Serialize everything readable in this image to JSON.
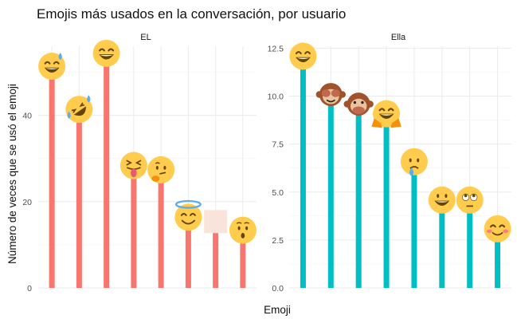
{
  "chart_data": {
    "type": "bar",
    "title": "Emojis más usados en la conversación, por usuario",
    "xlabel": "Emoji",
    "ylabel": "Número de veces que se usó el emoji",
    "grid": true,
    "legend": "none",
    "panels": [
      {
        "name": "EL",
        "color": "#F8766D",
        "ylim": [
          0,
          56
        ],
        "yticks": [
          0,
          20,
          40
        ],
        "ytick_labels": [
          "0",
          "20",
          "40"
        ],
        "emojis": [
          "grinning-face-with-sweat",
          "rolling-on-the-floor-laughing",
          "beaming-face-with-smiling-eyes",
          "squinting-face-with-tongue",
          "thinking-face",
          "smiling-face-with-halo",
          "unrendered-emoji-box",
          "hushed-face"
        ],
        "values": [
          51,
          41,
          54,
          28,
          27,
          16,
          15,
          13
        ]
      },
      {
        "name": "Ella",
        "color": "#00BFC4",
        "ylim": [
          0,
          12.6
        ],
        "yticks": [
          0,
          2.5,
          5,
          7.5,
          10,
          12.5
        ],
        "ytick_labels": [
          "0.0",
          "2.5",
          "5.0",
          "7.5",
          "10.0",
          "12.5"
        ],
        "emojis": [
          "beaming-face-with-smiling-eyes",
          "see-no-evil-monkey",
          "speak-no-evil-monkey",
          "raising-hands-grin",
          "sad-but-relieved-face",
          "grinning-face-with-big-eyes",
          "face-with-rolling-eyes",
          "smiling-face-with-blush"
        ],
        "values": [
          12,
          10,
          9.5,
          9,
          6.5,
          4.5,
          4.5,
          3
        ]
      }
    ]
  }
}
